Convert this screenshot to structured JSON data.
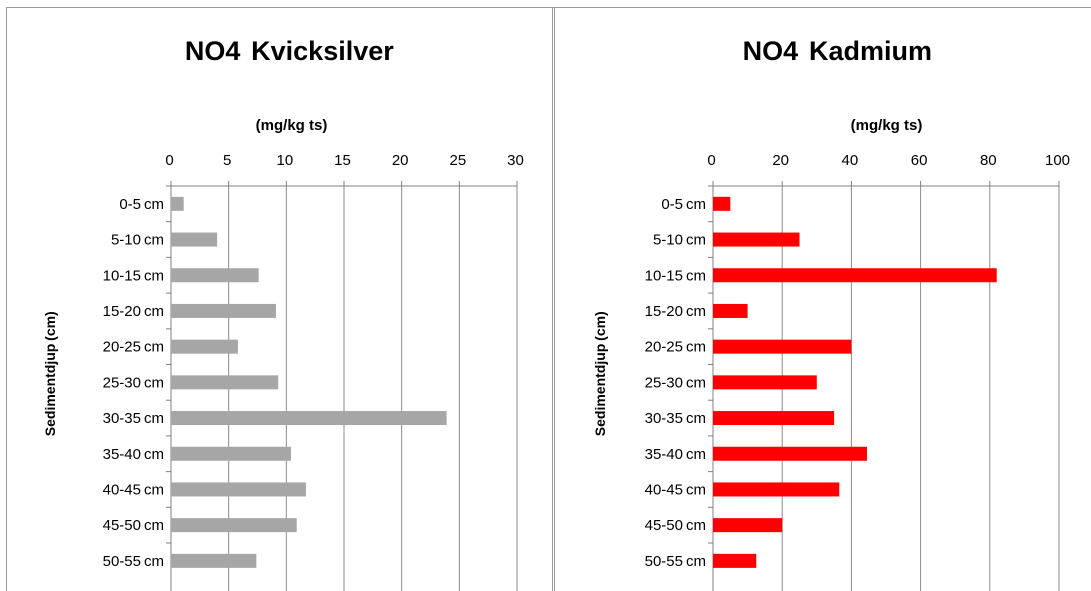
{
  "chart_data": [
    {
      "type": "bar",
      "orientation": "horizontal",
      "title": "NO4  Kvicksilver ",
      "xlabel": "(mg/kg ts) ",
      "ylabel": "Sedimentdjup (cm) ",
      "x_ticks": [
        "0 ",
        "5 ",
        "10 ",
        "15 ",
        "20 ",
        "25 ",
        "30 "
      ],
      "xlim": [
        0,
        30
      ],
      "grid": true,
      "color": "#a6a6a6",
      "categories": [
        "0-5 cm ",
        "5-10 cm ",
        "10-15 cm ",
        "15-20 cm ",
        "20-25 cm ",
        "25-30 cm ",
        "30-35 cm ",
        "35-40 cm ",
        "40-45 cm ",
        "45-50 cm ",
        "50-55 cm "
      ],
      "values": [
        1.1,
        4.0,
        7.6,
        9.1,
        5.8,
        9.3,
        23.9,
        10.4,
        11.7,
        10.9,
        7.4
      ]
    },
    {
      "type": "bar",
      "orientation": "horizontal",
      "title": "NO4  Kadmium ",
      "xlabel": "(mg/kg ts) ",
      "ylabel": "Sedimentdjup (cm) ",
      "x_ticks": [
        "0 ",
        "20 ",
        "40 ",
        "60 ",
        "80 ",
        "100 "
      ],
      "xlim": [
        0,
        100
      ],
      "grid": true,
      "color": "#ff0000",
      "categories": [
        "0-5 cm ",
        "5-10 cm ",
        "10-15 cm ",
        "15-20 cm ",
        "20-25 cm ",
        "25-30 cm ",
        "30-35 cm ",
        "35-40 cm ",
        "40-45 cm ",
        "45-50 cm ",
        "50-55 cm "
      ],
      "values": [
        5,
        25,
        82,
        10,
        40,
        30,
        35,
        44.5,
        36.5,
        20,
        12.5
      ]
    }
  ]
}
